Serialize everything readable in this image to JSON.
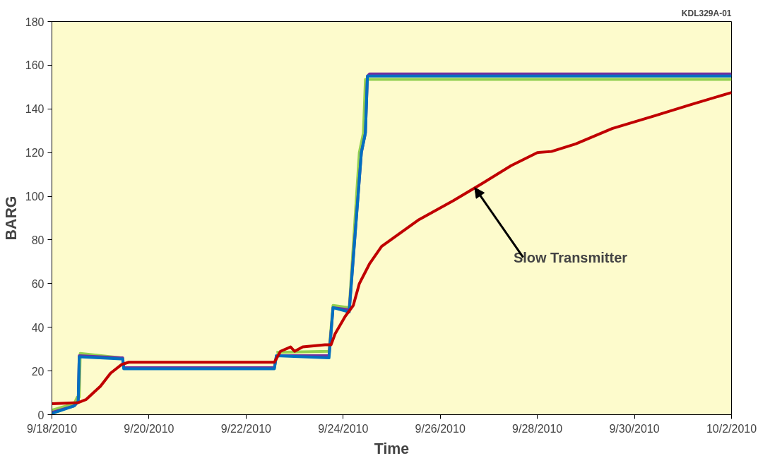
{
  "chart_data": {
    "type": "line",
    "xlabel": "Time",
    "ylabel": "BARG",
    "xlim": [
      "2010-09-18",
      "2010-10-02"
    ],
    "ylim": [
      0,
      180
    ],
    "yticks": [
      0,
      20,
      40,
      60,
      80,
      100,
      120,
      140,
      160,
      180
    ],
    "xticks": [
      {
        "value": "2010-09-18",
        "label": "9/18/2010"
      },
      {
        "value": "2010-09-20",
        "label": "9/20/2010"
      },
      {
        "value": "2010-09-22",
        "label": "9/22/2010"
      },
      {
        "value": "2010-09-24",
        "label": "9/24/2010"
      },
      {
        "value": "2010-09-26",
        "label": "9/26/2010"
      },
      {
        "value": "2010-09-28",
        "label": "9/28/2010"
      },
      {
        "value": "2010-09-30",
        "label": "9/30/2010"
      },
      {
        "value": "2010-10-02",
        "label": "10/2/2010"
      }
    ],
    "grid": false,
    "line_style": "solid",
    "marker": "none",
    "annotations": [
      "KDL329A-01",
      {
        "text": "Slow Transmitter",
        "x": "2010-09-26T17:00",
        "y": 104
      }
    ],
    "series": [
      {
        "color": "#92d050",
        "x": [
          "2010-09-18T00:00",
          "2010-09-18T11:00",
          "2010-09-18T12:30",
          "2010-09-18T13:30",
          "2010-09-18T14:00",
          "2010-09-19T10:00",
          "2010-09-19T11:00",
          "2010-09-19T11:30",
          "2010-09-22T14:00",
          "2010-09-22T15:00",
          "2010-09-23T17:00",
          "2010-09-23T19:00",
          "2010-09-24T03:00",
          "2010-09-24T08:00",
          "2010-09-24T10:00",
          "2010-09-24T11:00",
          "2010-09-24T13:00",
          "2010-10-02T00:00"
        ],
        "values": [
          2,
          5,
          8,
          8,
          28,
          26,
          null,
          null,
          null,
          28.5,
          29,
          50,
          49,
          120,
          129,
          153.5,
          153.5,
          153.5
        ]
      },
      {
        "color": "#7030a0",
        "x": [
          "2010-09-18T00:00",
          "2010-09-18T11:00",
          "2010-09-18T13:00",
          "2010-09-18T13:30",
          "2010-09-19T10:00",
          "2010-09-19T11:00",
          "2010-09-19T11:30",
          "2010-09-22T14:00",
          "2010-09-22T15:00",
          "2010-09-23T17:00",
          "2010-09-23T19:00",
          "2010-09-24T03:00",
          "2010-09-24T09:00",
          "2010-09-24T11:00",
          "2010-09-24T12:00",
          "2010-09-24T13:00",
          "2010-10-02T00:00"
        ],
        "values": [
          1,
          4,
          6,
          27,
          26,
          26,
          21.5,
          21.5,
          27,
          27,
          49,
          48,
          120,
          129,
          155,
          156,
          156
        ]
      },
      {
        "color": "#0070c0",
        "x": [
          "2010-09-18T00:00",
          "2010-09-18T11:00",
          "2010-09-18T13:00",
          "2010-09-18T13:30",
          "2010-09-19T10:00",
          "2010-09-19T11:00",
          "2010-09-19T11:30",
          "2010-09-22T14:00",
          "2010-09-22T15:00",
          "2010-09-23T17:00",
          "2010-09-23T19:00",
          "2010-09-24T03:00",
          "2010-09-24T09:00",
          "2010-09-24T11:00",
          "2010-09-24T12:00",
          "2010-09-24T13:00",
          "2010-10-02T00:00"
        ],
        "values": [
          0.5,
          4,
          6,
          26.5,
          25.5,
          25.5,
          21,
          21,
          27,
          26,
          49,
          47,
          120,
          129,
          155,
          155,
          155
        ]
      },
      {
        "color": "#c00000",
        "x": [
          "2010-09-18T00:00",
          "2010-09-18T13:00",
          "2010-09-18T17:00",
          "2010-09-19T00:00",
          "2010-09-19T05:00",
          "2010-09-19T10:30",
          "2010-09-19T14:00",
          "2010-09-22T14:00",
          "2010-09-22T17:00",
          "2010-09-22T22:00",
          "2010-09-23T00:00",
          "2010-09-23T04:00",
          "2010-09-23T15:00",
          "2010-09-23T18:00",
          "2010-09-23T20:00",
          "2010-09-24T01:00",
          "2010-09-24T05:00",
          "2010-09-24T08:00",
          "2010-09-24T13:00",
          "2010-09-24T19:00",
          "2010-09-25T13:00",
          "2010-09-26T06:30",
          "2010-09-26T21:00",
          "2010-09-27T11:00",
          "2010-09-28T00:00",
          "2010-09-28T07:00",
          "2010-09-28T19:00",
          "2010-09-29T13:00",
          "2010-09-30T10:30",
          "2010-10-01T04:00",
          "2010-10-02T00:00"
        ],
        "values": [
          5,
          5.5,
          7,
          13,
          19,
          23,
          24,
          24,
          29,
          31,
          29,
          31,
          32,
          32,
          37,
          45,
          50,
          60,
          69,
          77,
          89,
          98,
          106,
          114,
          120,
          120.5,
          124,
          131,
          137,
          142,
          147.5
        ]
      }
    ]
  }
}
